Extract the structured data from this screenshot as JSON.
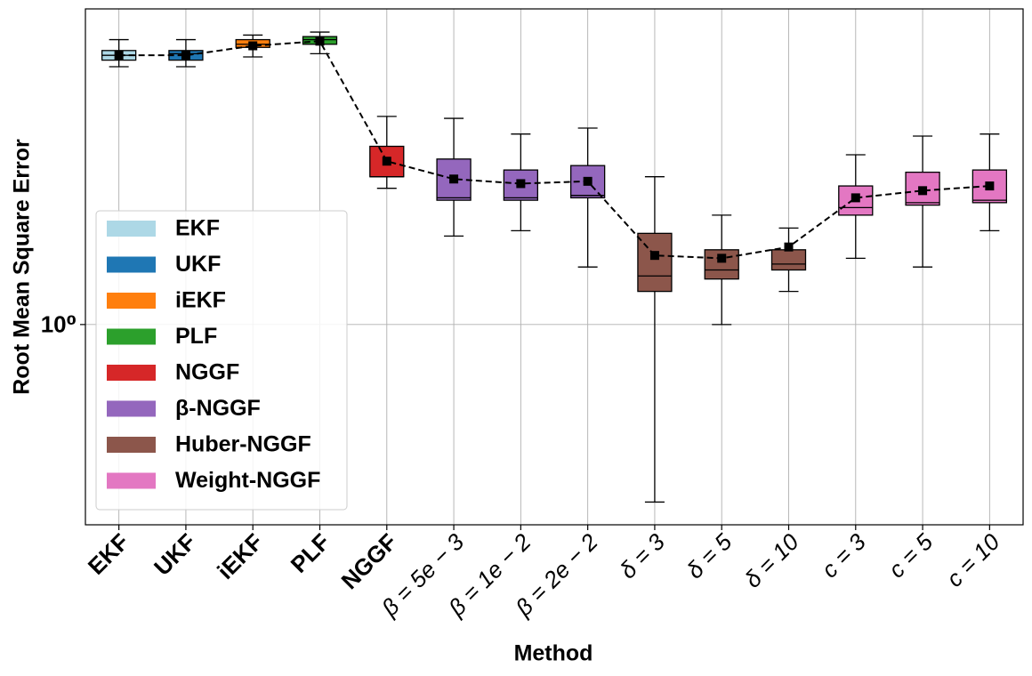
{
  "chart_data": {
    "type": "box",
    "x_label": "Method",
    "y_label": "Root Mean Square Error",
    "categories": [
      "EKF",
      "UKF",
      "iEKF",
      "PLF",
      "NGGF",
      "β = 5e − 3",
      "β = 1e − 2",
      "β = 2e − 2",
      "δ = 3",
      "δ = 5",
      "δ = 10",
      "c = 3",
      "c = 5",
      "c = 10"
    ],
    "colors": [
      "#add8e6",
      "#1f77b4",
      "#ff7f0e",
      "#2ca02c",
      "#d62728",
      "#9467bd",
      "#9467bd",
      "#9467bd",
      "#8c564b",
      "#8c564b",
      "#8c564b",
      "#e377c2",
      "#e377c2",
      "#e377c2"
    ],
    "stats": [
      {
        "whislo": 2.1,
        "q1": 2.14,
        "med": 2.17,
        "q3": 2.2,
        "whishi": 2.27,
        "mean": 2.17
      },
      {
        "whislo": 2.1,
        "q1": 2.14,
        "med": 2.18,
        "q3": 2.2,
        "whishi": 2.27,
        "mean": 2.17
      },
      {
        "whislo": 2.16,
        "q1": 2.22,
        "med": 2.24,
        "q3": 2.27,
        "whishi": 2.3,
        "mean": 2.23
      },
      {
        "whislo": 2.18,
        "q1": 2.24,
        "med": 2.27,
        "q3": 2.29,
        "whishi": 2.32,
        "mean": 2.26
      },
      {
        "whislo": 1.48,
        "q1": 1.53,
        "med": 1.53,
        "q3": 1.67,
        "whishi": 1.82,
        "mean": 1.6
      },
      {
        "whislo": 1.29,
        "q1": 1.43,
        "med": 1.44,
        "q3": 1.61,
        "whishi": 1.81,
        "mean": 1.52
      },
      {
        "whislo": 1.31,
        "q1": 1.43,
        "med": 1.44,
        "q3": 1.56,
        "whishi": 1.73,
        "mean": 1.5
      },
      {
        "whislo": 1.18,
        "q1": 1.44,
        "med": 1.45,
        "q3": 1.58,
        "whishi": 1.76,
        "mean": 1.51
      },
      {
        "whislo": 0.6,
        "q1": 1.1,
        "med": 1.15,
        "q3": 1.3,
        "whishi": 1.53,
        "mean": 1.22
      },
      {
        "whislo": 1.0,
        "q1": 1.14,
        "med": 1.17,
        "q3": 1.24,
        "whishi": 1.37,
        "mean": 1.21
      },
      {
        "whislo": 1.1,
        "q1": 1.17,
        "med": 1.19,
        "q3": 1.24,
        "whishi": 1.32,
        "mean": 1.25
      },
      {
        "whislo": 1.21,
        "q1": 1.37,
        "med": 1.4,
        "q3": 1.49,
        "whishi": 1.63,
        "mean": 1.44
      },
      {
        "whislo": 1.18,
        "q1": 1.41,
        "med": 1.42,
        "q3": 1.55,
        "whishi": 1.72,
        "mean": 1.47
      },
      {
        "whislo": 1.31,
        "q1": 1.42,
        "med": 1.43,
        "q3": 1.56,
        "whishi": 1.73,
        "mean": 1.49
      }
    ],
    "legend": [
      {
        "name": "EKF",
        "color": "#add8e6"
      },
      {
        "name": "UKF",
        "color": "#1f77b4"
      },
      {
        "name": "iEKF",
        "color": "#ff7f0e"
      },
      {
        "name": "PLF",
        "color": "#2ca02c"
      },
      {
        "name": "NGGF",
        "color": "#d62728"
      },
      {
        "name": "β-NGGF",
        "color": "#9467bd"
      },
      {
        "name": "Huber-NGGF",
        "color": "#8c564b"
      },
      {
        "name": "Weight-NGGF",
        "color": "#e377c2"
      }
    ],
    "legend_position": "lower left",
    "yscale": "log",
    "ylim": [
      0.562,
      2.48
    ],
    "yticks": [
      {
        "value": 1,
        "label": "10⁰"
      }
    ],
    "grid": true
  }
}
